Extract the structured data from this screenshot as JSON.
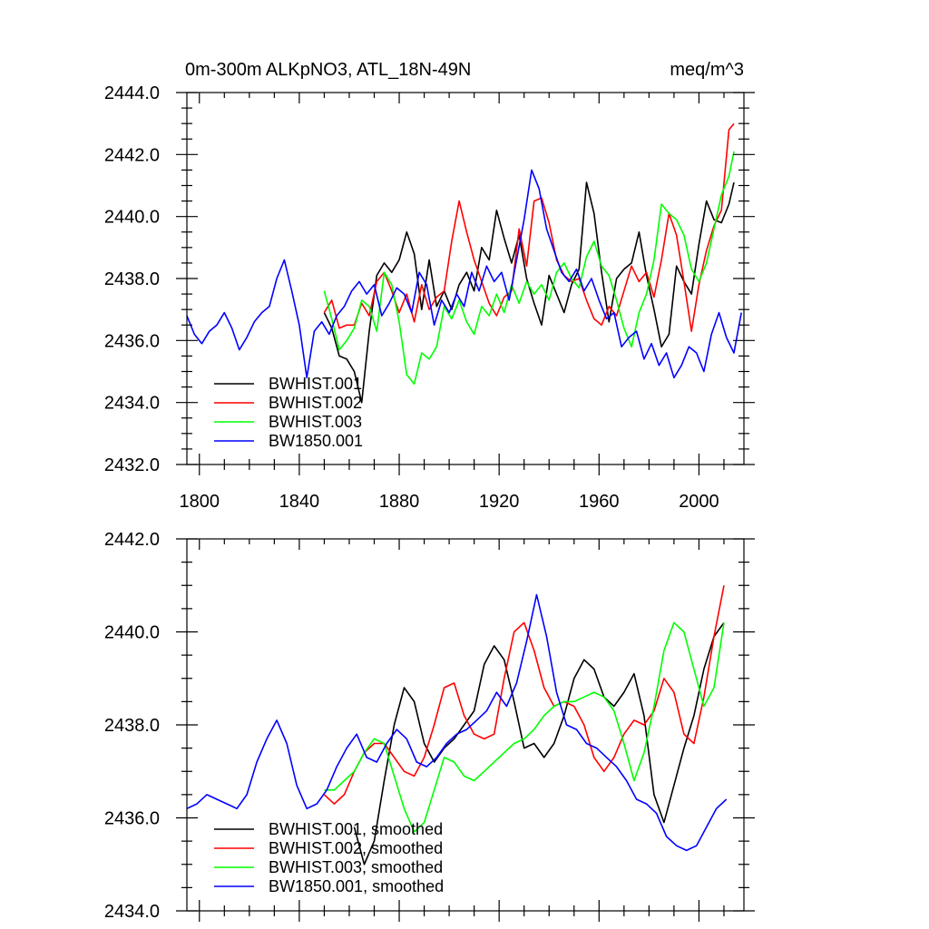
{
  "chart_data": [
    {
      "type": "line",
      "title_left": "0m-300m ALKpNO3, ATL_18N-49N",
      "title_right": "meq/m^3",
      "xlim": [
        1795,
        2018
      ],
      "ylim": [
        2432,
        2444
      ],
      "x_ticks": [
        1800,
        1840,
        1880,
        1920,
        1960,
        2000
      ],
      "x_tick_labels": [
        "1800",
        "1840",
        "1880",
        "1920",
        "1960",
        "2000"
      ],
      "y_ticks": [
        2432,
        2434,
        2436,
        2438,
        2440,
        2442,
        2444
      ],
      "y_tick_labels": [
        "2432.0",
        "2434.0",
        "2436.0",
        "2438.0",
        "2440.0",
        "2442.0",
        "2444.0"
      ],
      "legend_position": "bottom-left",
      "series": [
        {
          "name": "BWHIST.001",
          "color": "#000000",
          "x": [
            1850,
            1853,
            1856,
            1859,
            1862,
            1865,
            1868,
            1871,
            1874,
            1877,
            1880,
            1883,
            1886,
            1889,
            1892,
            1895,
            1898,
            1901,
            1904,
            1907,
            1910,
            1913,
            1916,
            1919,
            1922,
            1925,
            1928,
            1931,
            1934,
            1937,
            1940,
            1943,
            1946,
            1949,
            1952,
            1955,
            1958,
            1961,
            1964,
            1967,
            1970,
            1973,
            1976,
            1979,
            1982,
            1985,
            1988,
            1991,
            1994,
            1997,
            2000,
            2003,
            2006,
            2009,
            2012,
            2014
          ],
          "y": [
            2436.9,
            2436.4,
            2435.5,
            2435.4,
            2435.0,
            2434.0,
            2436.3,
            2438.1,
            2438.5,
            2438.2,
            2438.6,
            2439.5,
            2438.8,
            2437.0,
            2438.6,
            2437.1,
            2437.6,
            2437.0,
            2437.8,
            2438.2,
            2437.6,
            2439.0,
            2438.6,
            2440.2,
            2439.3,
            2438.5,
            2439.4,
            2438.0,
            2437.2,
            2436.5,
            2438.1,
            2437.5,
            2436.9,
            2437.8,
            2438.3,
            2441.1,
            2440.1,
            2438.2,
            2436.6,
            2438.0,
            2438.3,
            2438.5,
            2439.5,
            2438.1,
            2437.0,
            2435.8,
            2436.2,
            2438.4,
            2437.9,
            2437.5,
            2439.1,
            2440.5,
            2439.9,
            2439.8,
            2440.4,
            2441.1
          ]
        },
        {
          "name": "BWHIST.002",
          "color": "#ff0000",
          "x": [
            1850,
            1853,
            1856,
            1859,
            1862,
            1865,
            1868,
            1871,
            1874,
            1877,
            1880,
            1883,
            1886,
            1889,
            1892,
            1895,
            1898,
            1901,
            1904,
            1907,
            1910,
            1913,
            1916,
            1919,
            1922,
            1925,
            1928,
            1931,
            1934,
            1937,
            1940,
            1943,
            1946,
            1949,
            1952,
            1955,
            1958,
            1961,
            1964,
            1967,
            1970,
            1973,
            1976,
            1979,
            1982,
            1985,
            1988,
            1991,
            1994,
            1997,
            2000,
            2003,
            2006,
            2009,
            2012,
            2014
          ],
          "y": [
            2436.9,
            2437.3,
            2436.4,
            2436.5,
            2436.5,
            2437.2,
            2436.8,
            2437.9,
            2438.2,
            2437.6,
            2436.9,
            2437.5,
            2436.6,
            2437.8,
            2437.0,
            2437.4,
            2437.6,
            2439.2,
            2440.5,
            2439.5,
            2438.6,
            2437.9,
            2437.2,
            2436.8,
            2437.4,
            2437.6,
            2439.6,
            2438.4,
            2440.5,
            2440.6,
            2439.8,
            2438.6,
            2438.1,
            2437.9,
            2438.0,
            2437.3,
            2436.7,
            2436.5,
            2437.1,
            2436.8,
            2437.6,
            2438.4,
            2437.9,
            2438.2,
            2437.4,
            2438.6,
            2440.1,
            2439.4,
            2437.9,
            2436.3,
            2437.8,
            2438.9,
            2439.7,
            2440.2,
            2442.8,
            2443.0
          ]
        },
        {
          "name": "BWHIST.003",
          "color": "#00ff00",
          "x": [
            1850,
            1853,
            1856,
            1859,
            1862,
            1865,
            1868,
            1871,
            1874,
            1877,
            1880,
            1883,
            1886,
            1889,
            1892,
            1895,
            1898,
            1901,
            1904,
            1907,
            1910,
            1913,
            1916,
            1919,
            1922,
            1925,
            1928,
            1931,
            1934,
            1937,
            1940,
            1943,
            1946,
            1949,
            1952,
            1955,
            1958,
            1961,
            1964,
            1967,
            1970,
            1973,
            1976,
            1979,
            1982,
            1985,
            1988,
            1991,
            1994,
            1997,
            2000,
            2003,
            2006,
            2009,
            2012,
            2014
          ],
          "y": [
            2437.6,
            2436.7,
            2435.7,
            2436.0,
            2436.4,
            2437.3,
            2437.1,
            2436.3,
            2438.2,
            2437.8,
            2436.6,
            2434.9,
            2434.6,
            2435.6,
            2435.4,
            2435.8,
            2437.1,
            2436.7,
            2437.3,
            2436.6,
            2436.2,
            2437.1,
            2436.8,
            2437.5,
            2436.9,
            2437.8,
            2437.2,
            2437.9,
            2437.5,
            2437.8,
            2437.3,
            2438.2,
            2438.5,
            2438.0,
            2437.7,
            2438.7,
            2439.2,
            2438.4,
            2438.1,
            2437.3,
            2436.4,
            2435.8,
            2436.9,
            2437.5,
            2438.6,
            2440.4,
            2440.1,
            2439.9,
            2439.4,
            2438.3,
            2437.9,
            2438.5,
            2439.6,
            2440.7,
            2441.3,
            2442.1
          ]
        },
        {
          "name": "BW1850.001",
          "color": "#0000ff",
          "x": [
            1795,
            1798,
            1801,
            1804,
            1807,
            1810,
            1813,
            1816,
            1819,
            1822,
            1825,
            1828,
            1831,
            1834,
            1837,
            1840,
            1843,
            1846,
            1849,
            1852,
            1855,
            1858,
            1861,
            1864,
            1867,
            1870,
            1873,
            1876,
            1879,
            1882,
            1885,
            1888,
            1891,
            1894,
            1897,
            1900,
            1903,
            1906,
            1909,
            1912,
            1915,
            1918,
            1921,
            1924,
            1927,
            1930,
            1933,
            1936,
            1939,
            1942,
            1945,
            1948,
            1951,
            1954,
            1957,
            1960,
            1963,
            1966,
            1969,
            1972,
            1975,
            1978,
            1981,
            1984,
            1987,
            1990,
            1993,
            1996,
            1999,
            2002,
            2005,
            2008,
            2011,
            2014,
            2017
          ],
          "y": [
            2436.8,
            2436.2,
            2435.9,
            2436.3,
            2436.5,
            2436.9,
            2436.4,
            2435.7,
            2436.1,
            2436.6,
            2436.9,
            2437.1,
            2438.0,
            2438.6,
            2437.6,
            2436.5,
            2434.8,
            2436.3,
            2436.6,
            2436.2,
            2436.8,
            2437.1,
            2437.6,
            2437.9,
            2437.5,
            2437.8,
            2436.8,
            2437.2,
            2437.7,
            2437.5,
            2436.9,
            2438.2,
            2437.8,
            2436.5,
            2437.3,
            2436.9,
            2437.5,
            2437.1,
            2438.2,
            2437.6,
            2438.4,
            2437.9,
            2438.2,
            2437.3,
            2438.6,
            2439.9,
            2441.5,
            2440.9,
            2439.6,
            2438.9,
            2438.2,
            2437.9,
            2438.3,
            2437.6,
            2438.0,
            2437.3,
            2436.7,
            2436.9,
            2435.8,
            2436.1,
            2436.3,
            2435.4,
            2435.9,
            2435.2,
            2435.6,
            2434.8,
            2435.2,
            2435.8,
            2435.6,
            2435.0,
            2436.2,
            2436.9,
            2436.1,
            2435.6,
            2436.9
          ]
        }
      ]
    },
    {
      "type": "line",
      "xlim": [
        1795,
        2018
      ],
      "ylim": [
        2434,
        2442
      ],
      "x_ticks": [
        1800,
        1840,
        1880,
        1920,
        1960,
        2000
      ],
      "y_ticks": [
        2434,
        2436,
        2438,
        2440,
        2442
      ],
      "y_tick_labels": [
        "2434.0",
        "2436.0",
        "2438.0",
        "2440.0",
        "2442.0"
      ],
      "legend_position": "bottom-left",
      "series": [
        {
          "name": "BWHIST.001, smoothed",
          "color": "#000000",
          "x": [
            1862,
            1866,
            1870,
            1874,
            1878,
            1882,
            1886,
            1890,
            1894,
            1898,
            1902,
            1906,
            1910,
            1914,
            1918,
            1922,
            1926,
            1930,
            1934,
            1938,
            1942,
            1946,
            1950,
            1954,
            1958,
            1962,
            1966,
            1970,
            1974,
            1978,
            1982,
            1986,
            1990,
            1994,
            1998,
            2002,
            2006,
            2010
          ],
          "y": [
            2435.8,
            2435.0,
            2435.5,
            2436.8,
            2438.0,
            2438.8,
            2438.5,
            2437.6,
            2437.2,
            2437.5,
            2437.7,
            2438.0,
            2438.3,
            2439.3,
            2439.7,
            2439.4,
            2438.5,
            2437.5,
            2437.6,
            2437.3,
            2437.6,
            2438.2,
            2439.0,
            2439.4,
            2439.2,
            2438.6,
            2438.4,
            2438.7,
            2439.1,
            2438.2,
            2436.5,
            2435.9,
            2436.7,
            2437.5,
            2438.2,
            2439.2,
            2439.9,
            2440.2
          ]
        },
        {
          "name": "BWHIST.002, smoothed",
          "color": "#ff0000",
          "x": [
            1850,
            1854,
            1858,
            1862,
            1866,
            1870,
            1874,
            1878,
            1882,
            1886,
            1890,
            1894,
            1898,
            1902,
            1906,
            1910,
            1914,
            1918,
            1922,
            1926,
            1930,
            1934,
            1938,
            1942,
            1946,
            1950,
            1954,
            1958,
            1962,
            1966,
            1970,
            1974,
            1978,
            1982,
            1986,
            1990,
            1994,
            1998,
            2002,
            2006,
            2010
          ],
          "y": [
            2436.5,
            2436.3,
            2436.5,
            2437.0,
            2437.4,
            2437.6,
            2437.6,
            2437.3,
            2437.0,
            2436.9,
            2437.3,
            2438.0,
            2438.8,
            2438.9,
            2438.2,
            2437.8,
            2437.7,
            2437.8,
            2439.0,
            2440.0,
            2440.2,
            2439.6,
            2438.8,
            2438.4,
            2438.5,
            2438.4,
            2438.0,
            2437.3,
            2437.0,
            2437.3,
            2437.8,
            2438.1,
            2438.0,
            2438.3,
            2439.0,
            2438.7,
            2437.8,
            2437.6,
            2438.6,
            2439.9,
            2441.0
          ]
        },
        {
          "name": "BWHIST.003, smoothed",
          "color": "#00ff00",
          "x": [
            1850,
            1854,
            1858,
            1862,
            1866,
            1870,
            1874,
            1878,
            1882,
            1886,
            1890,
            1894,
            1898,
            1902,
            1906,
            1910,
            1914,
            1918,
            1922,
            1926,
            1930,
            1934,
            1938,
            1942,
            1946,
            1950,
            1954,
            1958,
            1962,
            1966,
            1970,
            1974,
            1978,
            1982,
            1986,
            1990,
            1994,
            1998,
            2002,
            2006,
            2010
          ],
          "y": [
            2436.6,
            2436.6,
            2436.8,
            2437.0,
            2437.4,
            2437.7,
            2437.6,
            2436.9,
            2436.2,
            2435.7,
            2435.9,
            2436.6,
            2437.3,
            2437.2,
            2436.9,
            2436.8,
            2437.0,
            2437.2,
            2437.4,
            2437.6,
            2437.7,
            2437.9,
            2438.2,
            2438.4,
            2438.5,
            2438.5,
            2438.6,
            2438.7,
            2438.6,
            2438.3,
            2437.6,
            2436.8,
            2437.4,
            2438.4,
            2439.6,
            2440.2,
            2440.0,
            2439.2,
            2438.4,
            2438.8,
            2440.2
          ]
        },
        {
          "name": "BW1850.001, smoothed",
          "color": "#0000ff",
          "x": [
            1795,
            1799,
            1803,
            1807,
            1811,
            1815,
            1819,
            1823,
            1827,
            1831,
            1835,
            1839,
            1843,
            1847,
            1851,
            1855,
            1859,
            1863,
            1867,
            1871,
            1875,
            1879,
            1883,
            1887,
            1891,
            1895,
            1899,
            1903,
            1907,
            1911,
            1915,
            1919,
            1923,
            1927,
            1931,
            1935,
            1939,
            1943,
            1947,
            1951,
            1955,
            1959,
            1963,
            1967,
            1971,
            1975,
            1979,
            1983,
            1987,
            1991,
            1995,
            1999,
            2003,
            2007,
            2011
          ],
          "y": [
            2436.2,
            2436.3,
            2436.5,
            2436.4,
            2436.3,
            2436.2,
            2436.5,
            2437.2,
            2437.7,
            2438.1,
            2437.6,
            2436.7,
            2436.2,
            2436.3,
            2436.6,
            2437.1,
            2437.5,
            2437.8,
            2437.3,
            2437.2,
            2437.6,
            2437.9,
            2437.7,
            2437.2,
            2437.1,
            2437.3,
            2437.6,
            2437.8,
            2437.9,
            2438.1,
            2438.3,
            2438.7,
            2438.4,
            2438.9,
            2439.8,
            2440.8,
            2439.9,
            2438.7,
            2438.0,
            2437.9,
            2437.6,
            2437.5,
            2437.3,
            2437.1,
            2436.8,
            2436.4,
            2436.3,
            2436.1,
            2435.6,
            2435.4,
            2435.3,
            2435.4,
            2435.8,
            2436.2,
            2436.4
          ]
        }
      ]
    }
  ]
}
